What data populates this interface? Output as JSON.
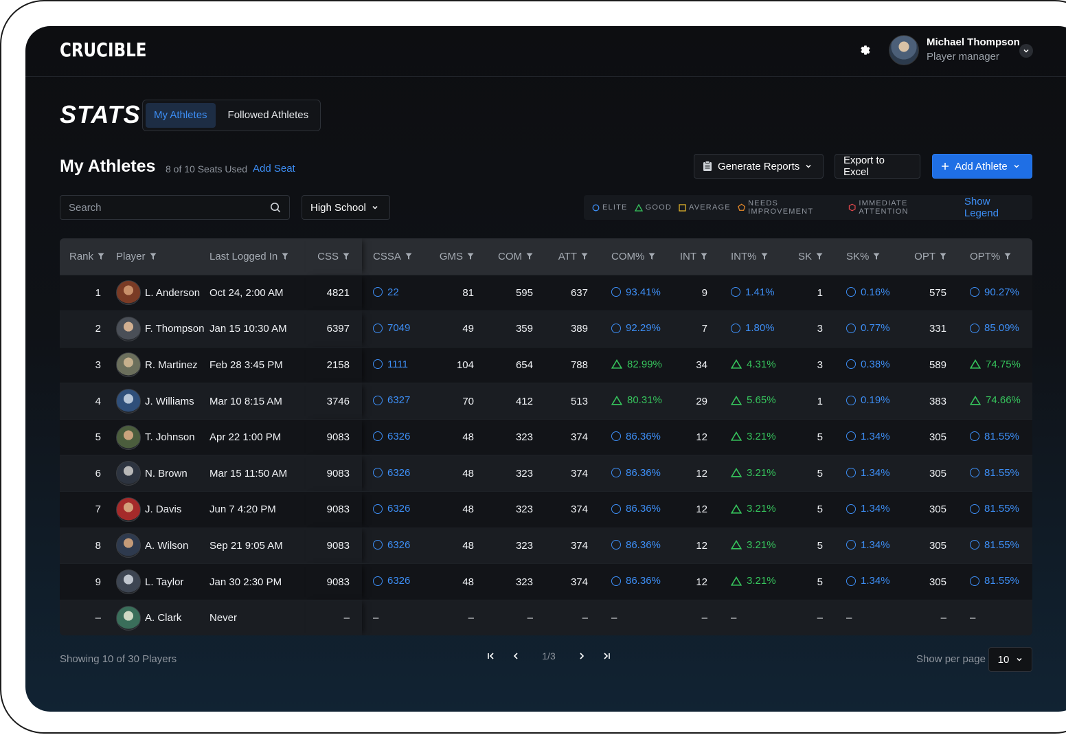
{
  "app": {
    "logo": "CRUCIBLE"
  },
  "user": {
    "name": "Michael Thompson",
    "role": "Player manager"
  },
  "page": {
    "title": "STATS"
  },
  "tabs": [
    {
      "label": "My Athletes",
      "active": true
    },
    {
      "label": "Followed Athletes",
      "active": false
    }
  ],
  "section": {
    "title": "My Athletes",
    "seats": "8 of 10 Seats Used",
    "add_seat": "Add Seat"
  },
  "actions": {
    "generate": "Generate Reports",
    "export": "Export to Excel",
    "add": "Add Athlete"
  },
  "search": {
    "placeholder": "Search",
    "value": ""
  },
  "filter": {
    "level": "High School"
  },
  "legend": {
    "items": [
      {
        "shape": "circle",
        "label": "ELITE",
        "color": "#3d8ef5"
      },
      {
        "shape": "triangle",
        "label": "GOOD",
        "color": "#36c45c"
      },
      {
        "shape": "square",
        "label": "AVERAGE",
        "color": "#e0b32a"
      },
      {
        "shape": "pentagon",
        "label": "NEEDS IMPROVEMENT",
        "color": "#e88a2a"
      },
      {
        "shape": "hexagon",
        "label": "IMMEDIATE ATTENTION",
        "color": "#e5484d"
      }
    ],
    "show": "Show Legend"
  },
  "table": {
    "columns": [
      "Rank",
      "Player",
      "Last Logged In",
      "CSS",
      "CSSA",
      "GMS",
      "COM",
      "ATT",
      "COM%",
      "INT",
      "INT%",
      "SK",
      "SK%",
      "OPT",
      "OPT%"
    ],
    "rows": [
      {
        "rank": "1",
        "player": "L. Anderson",
        "last": "Oct 24, 2:00 AM",
        "css": "4821",
        "cssa": "22",
        "cssa_t": "elite",
        "gms": "81",
        "com": "595",
        "att": "637",
        "comp": "93.41%",
        "comp_t": "elite",
        "int": "9",
        "intp": "1.41%",
        "intp_t": "elite",
        "sk": "1",
        "skp": "0.16%",
        "skp_t": "elite",
        "opt": "575",
        "optp": "90.27%",
        "optp_t": "elite"
      },
      {
        "rank": "2",
        "player": "F. Thompson",
        "last": "Jan 15 10:30 AM",
        "css": "6397",
        "cssa": "7049",
        "cssa_t": "elite",
        "gms": "49",
        "com": "359",
        "att": "389",
        "comp": "92.29%",
        "comp_t": "elite",
        "int": "7",
        "intp": "1.80%",
        "intp_t": "elite",
        "sk": "3",
        "skp": "0.77%",
        "skp_t": "elite",
        "opt": "331",
        "optp": "85.09%",
        "optp_t": "elite"
      },
      {
        "rank": "3",
        "player": "R. Martinez",
        "last": "Feb 28 3:45 PM",
        "css": "2158",
        "cssa": "1111",
        "cssa_t": "elite",
        "gms": "104",
        "com": "654",
        "att": "788",
        "comp": "82.99%",
        "comp_t": "good",
        "int": "34",
        "intp": "4.31%",
        "intp_t": "good",
        "sk": "3",
        "skp": "0.38%",
        "skp_t": "elite",
        "opt": "589",
        "optp": "74.75%",
        "optp_t": "good"
      },
      {
        "rank": "4",
        "player": "J. Williams",
        "last": "Mar 10 8:15 AM",
        "css": "3746",
        "cssa": "6327",
        "cssa_t": "elite",
        "gms": "70",
        "com": "412",
        "att": "513",
        "comp": "80.31%",
        "comp_t": "good",
        "int": "29",
        "intp": "5.65%",
        "intp_t": "good",
        "sk": "1",
        "skp": "0.19%",
        "skp_t": "elite",
        "opt": "383",
        "optp": "74.66%",
        "optp_t": "good"
      },
      {
        "rank": "5",
        "player": "T. Johnson",
        "last": "Apr 22 1:00 PM",
        "css": "9083",
        "cssa": "6326",
        "cssa_t": "elite",
        "gms": "48",
        "com": "323",
        "att": "374",
        "comp": "86.36%",
        "comp_t": "elite",
        "int": "12",
        "intp": "3.21%",
        "intp_t": "good",
        "sk": "5",
        "skp": "1.34%",
        "skp_t": "elite",
        "opt": "305",
        "optp": "81.55%",
        "optp_t": "elite"
      },
      {
        "rank": "6",
        "player": "N. Brown",
        "last": "Mar 15 11:50 AM",
        "css": "9083",
        "cssa": "6326",
        "cssa_t": "elite",
        "gms": "48",
        "com": "323",
        "att": "374",
        "comp": "86.36%",
        "comp_t": "elite",
        "int": "12",
        "intp": "3.21%",
        "intp_t": "good",
        "sk": "5",
        "skp": "1.34%",
        "skp_t": "elite",
        "opt": "305",
        "optp": "81.55%",
        "optp_t": "elite"
      },
      {
        "rank": "7",
        "player": "J. Davis",
        "last": "Jun 7 4:20 PM",
        "css": "9083",
        "cssa": "6326",
        "cssa_t": "elite",
        "gms": "48",
        "com": "323",
        "att": "374",
        "comp": "86.36%",
        "comp_t": "elite",
        "int": "12",
        "intp": "3.21%",
        "intp_t": "good",
        "sk": "5",
        "skp": "1.34%",
        "skp_t": "elite",
        "opt": "305",
        "optp": "81.55%",
        "optp_t": "elite"
      },
      {
        "rank": "8",
        "player": "A. Wilson",
        "last": "Sep 21 9:05 AM",
        "css": "9083",
        "cssa": "6326",
        "cssa_t": "elite",
        "gms": "48",
        "com": "323",
        "att": "374",
        "comp": "86.36%",
        "comp_t": "elite",
        "int": "12",
        "intp": "3.21%",
        "intp_t": "good",
        "sk": "5",
        "skp": "1.34%",
        "skp_t": "elite",
        "opt": "305",
        "optp": "81.55%",
        "optp_t": "elite"
      },
      {
        "rank": "9",
        "player": "L. Taylor",
        "last": "Jan 30 2:30 PM",
        "css": "9083",
        "cssa": "6326",
        "cssa_t": "elite",
        "gms": "48",
        "com": "323",
        "att": "374",
        "comp": "86.36%",
        "comp_t": "elite",
        "int": "12",
        "intp": "3.21%",
        "intp_t": "good",
        "sk": "5",
        "skp": "1.34%",
        "skp_t": "elite",
        "opt": "305",
        "optp": "81.55%",
        "optp_t": "elite"
      },
      {
        "rank": "–",
        "player": "A. Clark",
        "last": "Never",
        "css": "–",
        "cssa": "–",
        "cssa_t": "none",
        "gms": "–",
        "com": "–",
        "att": "–",
        "comp": "–",
        "comp_t": "none",
        "int": "–",
        "intp": "–",
        "intp_t": "none",
        "sk": "–",
        "skp": "–",
        "skp_t": "none",
        "opt": "–",
        "optp": "–",
        "optp_t": "none"
      }
    ]
  },
  "footer": {
    "showing": "Showing 10 of 30 Players",
    "page": "1/3",
    "per_page_label": "Show per page",
    "per_page": "10"
  }
}
